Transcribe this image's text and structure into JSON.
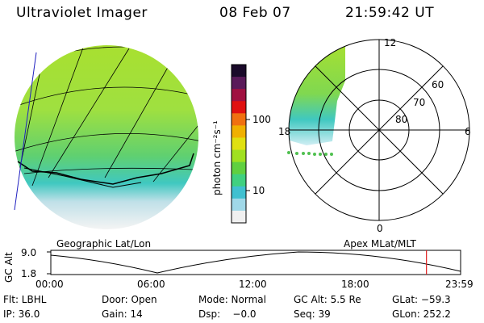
{
  "header": {
    "title": "Ultraviolet Imager",
    "date": "08 Feb 07",
    "time": "21:59:42 UT"
  },
  "colorbar": {
    "label": "photon cm⁻²s⁻¹",
    "ticks": [
      "100",
      "10"
    ],
    "colors": [
      "#1a0a2a",
      "#5a1a5a",
      "#a01040",
      "#e01010",
      "#f07010",
      "#f0b000",
      "#e0e010",
      "#a0e020",
      "#60d040",
      "#40d080",
      "#40c0d0",
      "#a0d8e8",
      "#f0f0f0"
    ]
  },
  "geo_panel": {
    "caption": "Geographic Lat/Lon"
  },
  "polar_panel": {
    "caption": "Apex MLat/MLT",
    "mlt_labels": {
      "top": "12",
      "right": "6",
      "bottom": "0",
      "left": "18"
    },
    "lat_labels": [
      "60",
      "70",
      "80"
    ]
  },
  "timeline": {
    "ylabel": "GC Alt",
    "yticks": [
      "9.0",
      "1.8"
    ],
    "xticks": [
      "00:00",
      "06:00",
      "12:00",
      "18:00",
      "23:59"
    ],
    "marker_hour": 22.0,
    "marker_color": "#e02020"
  },
  "footer": {
    "row1": {
      "flt": "Flt: LBHL",
      "door": "Door: Open",
      "mode": "Mode: Normal",
      "gcalt": "GC Alt: 5.5 Re",
      "glat": "GLat: −59.3"
    },
    "row2": {
      "ip": "IP: 36.0",
      "gain": "Gain: 14",
      "dsp": "Dsp:    −0.0",
      "seq": "Seq: 39",
      "glon": "GLon: 252.2"
    }
  }
}
